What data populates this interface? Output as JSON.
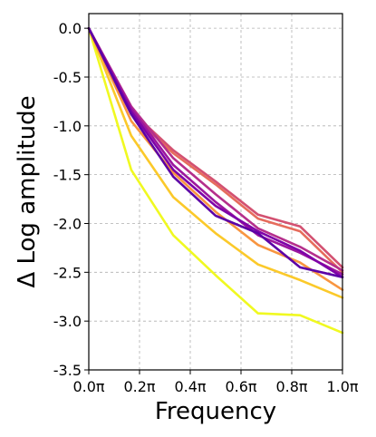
{
  "chart_data": {
    "type": "line",
    "xlabel": "Frequency",
    "ylabel": "Δ Log amplitude",
    "xlim": [
      0,
      1
    ],
    "ylim": [
      -3.5,
      0.15
    ],
    "grid": true,
    "x": [
      0,
      0.167,
      0.333,
      0.5,
      0.667,
      0.833,
      1.0
    ],
    "x_ticks": [
      {
        "value": 0.0,
        "label": "0.0π"
      },
      {
        "value": 0.2,
        "label": "0.2π"
      },
      {
        "value": 0.4,
        "label": "0.4π"
      },
      {
        "value": 0.6,
        "label": "0.6π"
      },
      {
        "value": 0.8,
        "label": "0.8π"
      },
      {
        "value": 1.0,
        "label": "1.0π"
      }
    ],
    "y_ticks": [
      {
        "value": 0.0,
        "label": "0.0"
      },
      {
        "value": -0.5,
        "label": "-0.5"
      },
      {
        "value": -1.0,
        "label": "-1.0"
      },
      {
        "value": -1.5,
        "label": "-1.5"
      },
      {
        "value": -2.0,
        "label": "-2.0"
      },
      {
        "value": -2.5,
        "label": "-2.5"
      },
      {
        "value": -3.0,
        "label": "-3.0"
      },
      {
        "value": -3.5,
        "label": "-3.5"
      }
    ],
    "series": [
      {
        "color": "#f0f921",
        "values": [
          0,
          -1.45,
          -2.12,
          -2.53,
          -2.92,
          -2.94,
          -3.12
        ]
      },
      {
        "color": "#fbc92a",
        "values": [
          0,
          -1.1,
          -1.73,
          -2.1,
          -2.42,
          -2.58,
          -2.76
        ]
      },
      {
        "color": "#f89540",
        "values": [
          0,
          -0.95,
          -1.48,
          -1.88,
          -2.22,
          -2.4,
          -2.68
        ]
      },
      {
        "color": "#e66c5c",
        "values": [
          0,
          -0.88,
          -1.28,
          -1.6,
          -1.95,
          -2.08,
          -2.5
        ]
      },
      {
        "color": "#d35171",
        "values": [
          0,
          -0.85,
          -1.25,
          -1.57,
          -1.91,
          -2.03,
          -2.45
        ]
      },
      {
        "color": "#b52f8c",
        "values": [
          0,
          -0.8,
          -1.33,
          -1.7,
          -2.05,
          -2.24,
          -2.48
        ]
      },
      {
        "color": "#9c179e",
        "values": [
          0,
          -0.82,
          -1.4,
          -1.78,
          -2.12,
          -2.3,
          -2.52
        ]
      },
      {
        "color": "#7e03a8",
        "values": [
          0,
          -0.85,
          -1.45,
          -1.82,
          -2.08,
          -2.28,
          -2.55
        ]
      },
      {
        "color": "#5c01a6",
        "values": [
          0,
          -0.88,
          -1.52,
          -1.92,
          -2.1,
          -2.45,
          -2.55
        ]
      }
    ]
  }
}
